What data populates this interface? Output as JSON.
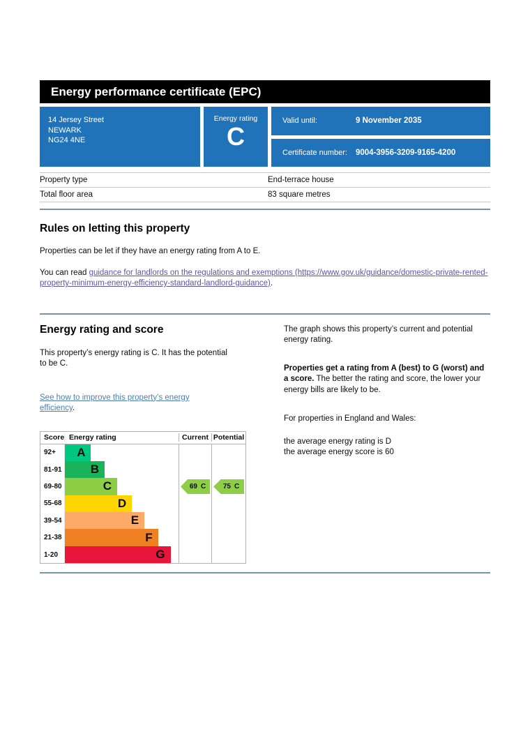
{
  "header": {
    "title": "Energy performance certificate (EPC)"
  },
  "summary": {
    "address_line1": "14 Jersey Street",
    "address_line2": "NEWARK",
    "address_line3": "NG24 4NE",
    "energy_rating_label": "Energy rating",
    "energy_rating": "C",
    "valid_until_label": "Valid until:",
    "valid_until": "9 November 2035",
    "certificate_number_label": "Certificate number:",
    "certificate_number": "9004-3956-3209-9165-4200"
  },
  "property_details": {
    "rows": [
      {
        "label": "Property type",
        "value": "End-terrace house"
      },
      {
        "label": "Total floor area",
        "value": "83 square metres"
      }
    ]
  },
  "rules": {
    "heading": "Rules on letting this property",
    "body": "Properties can be let if they have an energy rating from A to E.",
    "link_prefix": "You can read ",
    "link_text": "guidance for landlords on the regulations and exemptions (https://www.gov.uk/guidance/domestic-private-rented-property-minimum-energy-efficiency-standard-landlord-guidance)",
    "link_suffix": "."
  },
  "rating_section": {
    "heading": "Energy rating and score",
    "body": "This property’s energy rating is C. It has the potential to be C.",
    "improve_link_text": "See how to improve this property’s energy efficiency",
    "improve_link_suffix": ".",
    "right_para1": "The graph shows this property’s current and potential energy rating.",
    "right_para2_bold": "Properties get a rating from A (best) to G (worst) and a score.",
    "right_para2_rest": " The better the rating and score, the lower your energy bills are likely to be.",
    "right_para3": "For properties in England and Wales:",
    "right_para4_line1": "the average energy rating is D",
    "right_para4_line2": "the average energy score is 60"
  },
  "chart_data": {
    "type": "epc-rating-bands",
    "headers": [
      "Score",
      "Energy rating",
      "Current",
      "Potential"
    ],
    "bands": [
      {
        "score": "92+",
        "letter": "A",
        "color": "#00c781",
        "width_pct": 23
      },
      {
        "score": "81-91",
        "letter": "B",
        "color": "#19b459",
        "width_pct": 35
      },
      {
        "score": "69-80",
        "letter": "C",
        "color": "#8dce46",
        "width_pct": 46
      },
      {
        "score": "55-68",
        "letter": "D",
        "color": "#ffd500",
        "width_pct": 59
      },
      {
        "score": "39-54",
        "letter": "E",
        "color": "#fcaa65",
        "width_pct": 70
      },
      {
        "score": "21-38",
        "letter": "F",
        "color": "#ef8023",
        "width_pct": 82
      },
      {
        "score": "1-20",
        "letter": "G",
        "color": "#e9153b",
        "width_pct": 93
      }
    ],
    "current": {
      "score": "69",
      "letter": "C",
      "band_index": 2,
      "color": "#8dce46"
    },
    "potential": {
      "score": "75",
      "letter": "C",
      "band_index": 2,
      "color": "#8dce46"
    }
  },
  "colors": {
    "govuk_blue": "#2173b9",
    "divider_blue": "#7295aa",
    "chart_border_gray": "#b1b4b6",
    "link_purple": "#5b55a5",
    "link_blue": "#4a7fae"
  }
}
